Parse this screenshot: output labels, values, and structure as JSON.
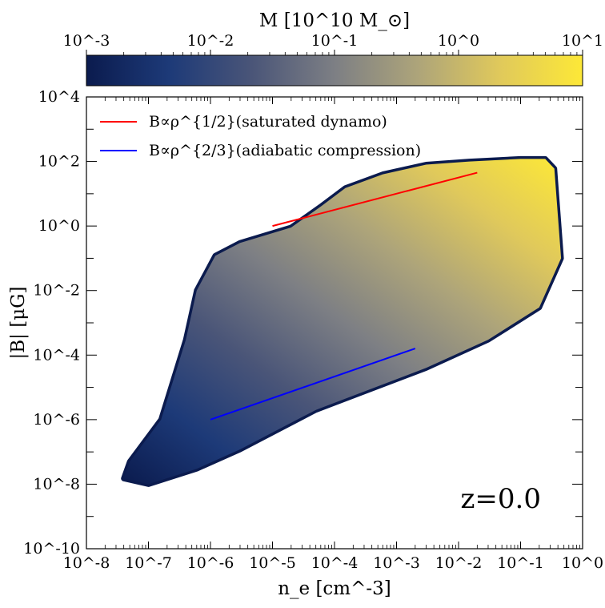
{
  "chart_data": {
    "type": "heatmap",
    "title": "",
    "xlabel": "n_e [cm^-3]",
    "ylabel": "|B| [μG]",
    "x_scale": "log",
    "y_scale": "log",
    "xlim": [
      1e-08,
      1
    ],
    "ylim": [
      1e-10,
      10000.0
    ],
    "x_tick_labels": [
      "10^-8",
      "10^-7",
      "10^-6",
      "10^-5",
      "10^-4",
      "10^-3",
      "10^-2",
      "10^-1",
      "10^0"
    ],
    "y_tick_labels": [
      "10^-10",
      "10^-8",
      "10^-6",
      "10^-4",
      "10^-2",
      "10^0",
      "10^2",
      "10^4"
    ],
    "grid": false,
    "colorbar": {
      "label": "M [10^10 M_⊙]",
      "scale": "log",
      "range": [
        0.001,
        10
      ],
      "tick_labels": [
        "10^-3",
        "10^-2",
        "10^-1",
        "10^0",
        "10^1"
      ],
      "colormap_stops": [
        "#0b1b4e",
        "#1d3a78",
        "#4a5578",
        "#7d7f84",
        "#ada47a",
        "#e0c95b",
        "#fde837"
      ]
    },
    "distribution_outline": [
      [
        1e-07,
        1e-08
      ],
      [
        6e-07,
        3e-08
      ],
      [
        3e-06,
        1.2e-07
      ],
      [
        5e-05,
        2e-06
      ],
      [
        0.003,
        4e-05
      ],
      [
        0.03,
        0.0003
      ],
      [
        0.2,
        0.003
      ],
      [
        0.45,
        0.1
      ],
      [
        0.35,
        60
      ],
      [
        0.25,
        120
      ],
      [
        0.1,
        120
      ],
      [
        0.015,
        100
      ],
      [
        0.003,
        80
      ],
      [
        0.0006,
        40
      ],
      [
        0.00015,
        15
      ],
      [
        6e-05,
        4
      ],
      [
        2e-05,
        0.9
      ],
      [
        3e-06,
        0.3
      ],
      [
        1.2e-06,
        0.12
      ],
      [
        6e-07,
        0.01
      ],
      [
        4e-07,
        0.0003
      ],
      [
        1.6e-07,
        1e-06
      ],
      [
        5e-08,
        5e-08
      ],
      [
        4e-08,
        1.5e-08
      ]
    ],
    "series": [
      {
        "name": "B∝ρ^{1/2}(saturated dynamo)",
        "color": "#ff0000",
        "x": [
          1e-05,
          0.02
        ],
        "y": [
          1,
          45
        ]
      },
      {
        "name": "B∝ρ^{2/3}(adiabatic compression)",
        "color": "#0000ff",
        "x": [
          1e-06,
          0.002
        ],
        "y": [
          1e-06,
          0.00016
        ]
      }
    ],
    "legend_position": "top-left",
    "annotations": [
      {
        "text": "z=0.0",
        "position": "bottom-right"
      }
    ]
  }
}
